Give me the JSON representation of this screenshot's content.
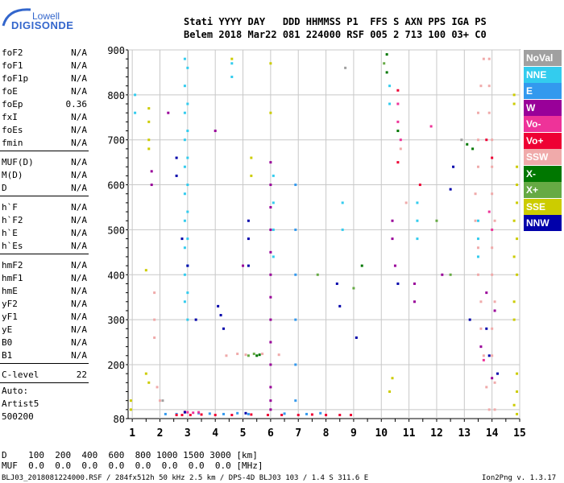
{
  "logo": {
    "line1": "Lowell",
    "line2": "DIGISONDE"
  },
  "header": {
    "row1": "Stati YYYY DAY   DDD HHMMSS P1  FFS S AXN PPS IGA PS",
    "row2": "Belem 2018 Mar22 081 224000 RSF 005 2 713 100 03+ C0"
  },
  "params": [
    {
      "name": "foF2",
      "value": "N/A"
    },
    {
      "name": "foF1",
      "value": "N/A"
    },
    {
      "name": "foF1p",
      "value": "N/A"
    },
    {
      "name": "foE",
      "value": "N/A"
    },
    {
      "name": "foEp",
      "value": "0.36"
    },
    {
      "name": "fxI",
      "value": "N/A"
    },
    {
      "name": "foEs",
      "value": "N/A"
    },
    {
      "name": "fmin",
      "value": "N/A"
    },
    {
      "name": "MUF(D)",
      "value": "N/A"
    },
    {
      "name": "M(D)",
      "value": "N/A"
    },
    {
      "name": "D",
      "value": "N/A"
    },
    {
      "name": "h`F",
      "value": "N/A"
    },
    {
      "name": "h`F2",
      "value": "N/A"
    },
    {
      "name": "h`E",
      "value": "N/A"
    },
    {
      "name": "h`Es",
      "value": "N/A"
    },
    {
      "name": "hmF2",
      "value": "N/A"
    },
    {
      "name": "hmF1",
      "value": "N/A"
    },
    {
      "name": "hmE",
      "value": "N/A"
    },
    {
      "name": "yF2",
      "value": "N/A"
    },
    {
      "name": "yF1",
      "value": "N/A"
    },
    {
      "name": "yE",
      "value": "N/A"
    },
    {
      "name": "B0",
      "value": "N/A"
    },
    {
      "name": "B1",
      "value": "N/A"
    },
    {
      "name": "C-level",
      "value": "22"
    }
  ],
  "auto": {
    "line1": "Auto:",
    "line2": "Artist5",
    "line3": "500200"
  },
  "legend": [
    {
      "label": "NoVal",
      "color": "#a0a0a0"
    },
    {
      "label": "NNE",
      "color": "#33ccee"
    },
    {
      "label": "E",
      "color": "#3399ee"
    },
    {
      "label": "W",
      "color": "#990099"
    },
    {
      "label": "Vo-",
      "color": "#ee3399"
    },
    {
      "label": "Vo+",
      "color": "#ee0033"
    },
    {
      "label": "SSW",
      "color": "#f0aaaa"
    },
    {
      "label": "X-",
      "color": "#007700"
    },
    {
      "label": "X+",
      "color": "#66aa44"
    },
    {
      "label": "SSE",
      "color": "#cccc00"
    },
    {
      "label": "NNW",
      "color": "#0000aa"
    }
  ],
  "chart_data": {
    "type": "scatter",
    "title": "",
    "xlabel": "",
    "ylabel": "",
    "xlim": [
      0.85,
      15.0
    ],
    "ylim": [
      80,
      900
    ],
    "xticks": [
      1,
      2,
      3,
      4,
      5,
      6,
      7,
      8,
      9,
      10,
      11,
      12,
      13,
      14,
      15
    ],
    "yticks": [
      100,
      200,
      300,
      400,
      500,
      600,
      700,
      800,
      900
    ],
    "ytick_labels": [
      "",
      "200",
      "300",
      "400",
      "500",
      "600",
      "700",
      "800",
      "900"
    ],
    "extra_ylabel": "80",
    "series": [
      {
        "name": "NNE",
        "color": "#33ccee",
        "points": [
          [
            2.9,
            880
          ],
          [
            2.9,
            820
          ],
          [
            2.9,
            760
          ],
          [
            2.9,
            700
          ],
          [
            2.9,
            640
          ],
          [
            2.9,
            580
          ],
          [
            2.9,
            520
          ],
          [
            2.9,
            460
          ],
          [
            2.9,
            400
          ],
          [
            2.9,
            340
          ],
          [
            3.0,
            860
          ],
          [
            3.0,
            780
          ],
          [
            3.0,
            720
          ],
          [
            3.0,
            660
          ],
          [
            3.0,
            600
          ],
          [
            3.0,
            540
          ],
          [
            3.0,
            480
          ],
          [
            3.0,
            420
          ],
          [
            3.0,
            360
          ],
          [
            3.0,
            300
          ],
          [
            6.1,
            620
          ],
          [
            6.1,
            560
          ],
          [
            6.1,
            500
          ],
          [
            6.1,
            440
          ],
          [
            8.6,
            560
          ],
          [
            8.6,
            500
          ],
          [
            11.3,
            560
          ],
          [
            11.3,
            520
          ],
          [
            11.3,
            480
          ],
          [
            10.3,
            820
          ],
          [
            10.3,
            780
          ],
          [
            13.5,
            520
          ],
          [
            13.5,
            480
          ],
          [
            13.5,
            440
          ],
          [
            1.1,
            800
          ],
          [
            1.1,
            760
          ],
          [
            4.6,
            870
          ],
          [
            4.6,
            840
          ]
        ]
      },
      {
        "name": "E",
        "color": "#3399ee",
        "points": [
          [
            6.9,
            600
          ],
          [
            6.9,
            500
          ],
          [
            6.9,
            400
          ],
          [
            6.9,
            300
          ],
          [
            6.9,
            200
          ],
          [
            6.9,
            120
          ],
          [
            2.2,
            90
          ],
          [
            2.6,
            90
          ],
          [
            3.4,
            92
          ],
          [
            3.8,
            91
          ],
          [
            4.3,
            90
          ],
          [
            4.8,
            92
          ],
          [
            5.2,
            90
          ],
          [
            6.5,
            91
          ],
          [
            7.3,
            90
          ],
          [
            7.8,
            92
          ]
        ]
      },
      {
        "name": "W",
        "color": "#990099",
        "points": [
          [
            6.0,
            650
          ],
          [
            6.0,
            600
          ],
          [
            6.0,
            550
          ],
          [
            6.0,
            500
          ],
          [
            6.0,
            450
          ],
          [
            6.0,
            400
          ],
          [
            6.0,
            350
          ],
          [
            6.0,
            300
          ],
          [
            6.0,
            250
          ],
          [
            6.0,
            200
          ],
          [
            6.0,
            150
          ],
          [
            6.0,
            120
          ],
          [
            6.0,
            100
          ],
          [
            1.7,
            630
          ],
          [
            1.7,
            600
          ],
          [
            2.3,
            760
          ],
          [
            4.0,
            720
          ],
          [
            5.0,
            420
          ],
          [
            10.4,
            520
          ],
          [
            10.4,
            480
          ],
          [
            10.5,
            420
          ],
          [
            11.2,
            340
          ],
          [
            11.2,
            380
          ],
          [
            12.2,
            400
          ],
          [
            13.8,
            360
          ],
          [
            14.1,
            320
          ],
          [
            13.6,
            240
          ],
          [
            14.0,
            170
          ]
        ]
      },
      {
        "name": "Vo-",
        "color": "#ee3399",
        "points": [
          [
            2.9,
            95
          ],
          [
            3.0,
            94
          ],
          [
            3.2,
            93
          ],
          [
            3.4,
            94
          ],
          [
            10.6,
            780
          ],
          [
            10.6,
            740
          ],
          [
            10.7,
            700
          ],
          [
            11.8,
            730
          ],
          [
            13.9,
            540
          ],
          [
            14.0,
            500
          ],
          [
            13.7,
            210
          ]
        ]
      },
      {
        "name": "Vo+",
        "color": "#ee0033",
        "points": [
          [
            2.6,
            88
          ],
          [
            2.8,
            88
          ],
          [
            3.1,
            88
          ],
          [
            3.5,
            89
          ],
          [
            4.0,
            88
          ],
          [
            4.6,
            88
          ],
          [
            5.3,
            89
          ],
          [
            5.9,
            88
          ],
          [
            6.4,
            88
          ],
          [
            7.0,
            88
          ],
          [
            7.5,
            89
          ],
          [
            8.0,
            88
          ],
          [
            8.5,
            88
          ],
          [
            8.9,
            88
          ],
          [
            10.6,
            810
          ],
          [
            10.6,
            650
          ],
          [
            11.4,
            600
          ],
          [
            13.8,
            700
          ],
          [
            14.0,
            660
          ]
        ]
      },
      {
        "name": "SSW",
        "color": "#f0aaaa",
        "points": [
          [
            13.7,
            880
          ],
          [
            13.6,
            820
          ],
          [
            13.5,
            760
          ],
          [
            13.5,
            700
          ],
          [
            13.5,
            640
          ],
          [
            13.4,
            580
          ],
          [
            13.4,
            520
          ],
          [
            13.5,
            460
          ],
          [
            13.5,
            400
          ],
          [
            13.6,
            340
          ],
          [
            13.6,
            280
          ],
          [
            13.7,
            220
          ],
          [
            13.8,
            150
          ],
          [
            13.9,
            100
          ],
          [
            13.9,
            880
          ],
          [
            13.9,
            820
          ],
          [
            13.9,
            760
          ],
          [
            14.0,
            700
          ],
          [
            14.0,
            640
          ],
          [
            14.0,
            580
          ],
          [
            14.1,
            520
          ],
          [
            14.0,
            460
          ],
          [
            14.0,
            400
          ],
          [
            14.1,
            340
          ],
          [
            14.0,
            280
          ],
          [
            14.0,
            220
          ],
          [
            14.1,
            160
          ],
          [
            14.1,
            100
          ],
          [
            4.4,
            220
          ],
          [
            4.8,
            224
          ],
          [
            5.1,
            222
          ],
          [
            5.7,
            224
          ],
          [
            6.3,
            222
          ],
          [
            1.8,
            360
          ],
          [
            1.8,
            300
          ],
          [
            1.8,
            260
          ],
          [
            1.9,
            150
          ],
          [
            2.0,
            120
          ],
          [
            10.7,
            680
          ],
          [
            10.9,
            560
          ]
        ]
      },
      {
        "name": "X-",
        "color": "#007700",
        "points": [
          [
            10.2,
            890
          ],
          [
            10.2,
            850
          ],
          [
            10.6,
            720
          ],
          [
            13.1,
            690
          ],
          [
            13.3,
            680
          ],
          [
            9.3,
            420
          ],
          [
            5.5,
            220
          ],
          [
            5.6,
            222
          ]
        ]
      },
      {
        "name": "X+",
        "color": "#66aa44",
        "points": [
          [
            10.1,
            870
          ],
          [
            12.0,
            520
          ],
          [
            12.5,
            400
          ],
          [
            7.7,
            400
          ],
          [
            9.0,
            370
          ],
          [
            5.4,
            224
          ],
          [
            5.2,
            220
          ]
        ]
      },
      {
        "name": "SSE",
        "color": "#cccc00",
        "points": [
          [
            1.6,
            770
          ],
          [
            1.6,
            740
          ],
          [
            1.6,
            700
          ],
          [
            1.6,
            680
          ],
          [
            1.5,
            410
          ],
          [
            1.5,
            180
          ],
          [
            1.6,
            160
          ],
          [
            0.95,
            120
          ],
          [
            0.95,
            100
          ],
          [
            4.6,
            880
          ],
          [
            5.3,
            660
          ],
          [
            5.3,
            620
          ],
          [
            6.0,
            870
          ],
          [
            6.0,
            760
          ],
          [
            14.8,
            800
          ],
          [
            14.8,
            780
          ],
          [
            14.9,
            640
          ],
          [
            14.9,
            600
          ],
          [
            14.9,
            560
          ],
          [
            14.8,
            520
          ],
          [
            14.9,
            480
          ],
          [
            14.8,
            440
          ],
          [
            14.9,
            400
          ],
          [
            14.8,
            340
          ],
          [
            14.8,
            300
          ],
          [
            14.9,
            180
          ],
          [
            14.9,
            140
          ],
          [
            14.8,
            110
          ],
          [
            14.9,
            90
          ],
          [
            10.4,
            170
          ],
          [
            10.3,
            140
          ]
        ]
      },
      {
        "name": "NNW",
        "color": "#0000aa",
        "points": [
          [
            2.6,
            660
          ],
          [
            2.6,
            620
          ],
          [
            2.8,
            480
          ],
          [
            3.0,
            420
          ],
          [
            3.3,
            300
          ],
          [
            4.2,
            310
          ],
          [
            4.3,
            280
          ],
          [
            4.1,
            330
          ],
          [
            5.2,
            520
          ],
          [
            5.2,
            480
          ],
          [
            5.2,
            420
          ],
          [
            8.4,
            380
          ],
          [
            8.5,
            330
          ],
          [
            9.1,
            260
          ],
          [
            10.6,
            380
          ],
          [
            12.6,
            640
          ],
          [
            12.5,
            590
          ],
          [
            13.8,
            280
          ],
          [
            13.9,
            220
          ],
          [
            14.2,
            180
          ],
          [
            13.2,
            300
          ],
          [
            2.9,
            94
          ],
          [
            5.1,
            92
          ]
        ]
      },
      {
        "name": "NoVal",
        "color": "#a0a0a0",
        "points": [
          [
            2.1,
            120
          ],
          [
            8.7,
            860
          ],
          [
            12.9,
            700
          ]
        ]
      }
    ]
  },
  "footer": {
    "d_row": "D    100  200  400  600  800 1000 1500 3000 [km]",
    "muf_row": "MUF  0.0  0.0  0.0  0.0  0.0  0.0  0.0  0.0 [MHz]",
    "file_info": "BLJ03_2018081224000.RSF / 284fx512h 50 kHz 2.5 km / DPS-4D BLJ03 103 / 1.4 S 311.6 E",
    "version": "Ion2Png v. 1.3.17"
  }
}
